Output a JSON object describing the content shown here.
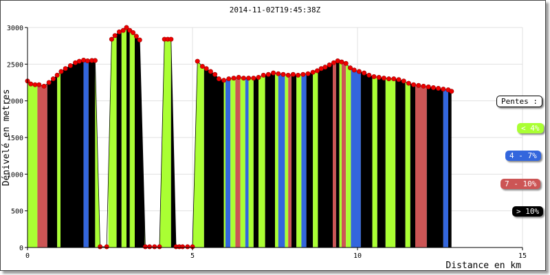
{
  "chart_data": {
    "type": "area",
    "title": "2014-11-02T19:45:38Z",
    "xlabel": "Distance en km",
    "ylabel": "Dénivelé en metres",
    "xlim": [
      0,
      15
    ],
    "ylim": [
      0,
      3000
    ],
    "x_ticks": [
      "0",
      "5",
      "10",
      "15"
    ],
    "y_ticks": [
      "0",
      "500",
      "1000",
      "1500",
      "2000",
      "2500",
      "3000"
    ],
    "grid": true,
    "legend": {
      "title": "Pentes :",
      "placement": "right",
      "items": [
        {
          "label": "< 4%",
          "color": "#aaff33",
          "text_color": "#ffffff"
        },
        {
          "label": "4 - 7%",
          "color": "#3366dd",
          "text_color": "#ffffff"
        },
        {
          "label": "7 - 10%",
          "color": "#cc5555",
          "text_color": "#ffffff"
        },
        {
          "label": "> 10%",
          "color": "#000000",
          "text_color": "#ffffff"
        }
      ]
    },
    "colors": {
      "lt4": "#aaff33",
      "p4_7": "#3366dd",
      "p7_10": "#cc5555",
      "gt10": "#000000",
      "point": "#ee0000"
    },
    "points": [
      [
        0.0,
        2270
      ],
      [
        0.1,
        2230
      ],
      [
        0.23,
        2220
      ],
      [
        0.35,
        2220
      ],
      [
        0.5,
        2200
      ],
      [
        0.65,
        2250
      ],
      [
        0.78,
        2300
      ],
      [
        0.9,
        2350
      ],
      [
        1.02,
        2400
      ],
      [
        1.15,
        2440
      ],
      [
        1.3,
        2480
      ],
      [
        1.45,
        2520
      ],
      [
        1.57,
        2540
      ],
      [
        1.7,
        2555
      ],
      [
        1.82,
        2545
      ],
      [
        1.95,
        2550
      ],
      [
        2.05,
        2550
      ],
      [
        2.2,
        10
      ],
      [
        2.4,
        10
      ],
      [
        2.55,
        2840
      ],
      [
        2.65,
        2890
      ],
      [
        2.78,
        2940
      ],
      [
        2.9,
        2960
      ],
      [
        3.0,
        3000
      ],
      [
        3.1,
        2960
      ],
      [
        3.2,
        2930
      ],
      [
        3.3,
        2880
      ],
      [
        3.4,
        2830
      ],
      [
        3.57,
        10
      ],
      [
        3.7,
        10
      ],
      [
        3.85,
        10
      ],
      [
        4.0,
        10
      ],
      [
        4.15,
        2840
      ],
      [
        4.25,
        2840
      ],
      [
        4.35,
        2840
      ],
      [
        4.5,
        10
      ],
      [
        4.6,
        10
      ],
      [
        4.7,
        10
      ],
      [
        4.85,
        10
      ],
      [
        5.0,
        10
      ],
      [
        5.15,
        2540
      ],
      [
        5.3,
        2470
      ],
      [
        5.42,
        2440
      ],
      [
        5.55,
        2400
      ],
      [
        5.68,
        2360
      ],
      [
        5.8,
        2300
      ],
      [
        5.95,
        2280
      ],
      [
        6.1,
        2300
      ],
      [
        6.25,
        2310
      ],
      [
        6.4,
        2320
      ],
      [
        6.55,
        2310
      ],
      [
        6.7,
        2310
      ],
      [
        6.85,
        2310
      ],
      [
        7.0,
        2320
      ],
      [
        7.15,
        2350
      ],
      [
        7.3,
        2360
      ],
      [
        7.45,
        2380
      ],
      [
        7.6,
        2370
      ],
      [
        7.75,
        2360
      ],
      [
        7.9,
        2350
      ],
      [
        8.05,
        2360
      ],
      [
        8.2,
        2350
      ],
      [
        8.35,
        2360
      ],
      [
        8.5,
        2370
      ],
      [
        8.65,
        2390
      ],
      [
        8.78,
        2410
      ],
      [
        8.9,
        2440
      ],
      [
        9.02,
        2460
      ],
      [
        9.15,
        2490
      ],
      [
        9.28,
        2520
      ],
      [
        9.4,
        2545
      ],
      [
        9.52,
        2530
      ],
      [
        9.65,
        2510
      ],
      [
        9.78,
        2450
      ],
      [
        9.9,
        2420
      ],
      [
        10.05,
        2400
      ],
      [
        10.2,
        2380
      ],
      [
        10.35,
        2350
      ],
      [
        10.5,
        2330
      ],
      [
        10.65,
        2320
      ],
      [
        10.8,
        2310
      ],
      [
        10.95,
        2300
      ],
      [
        11.1,
        2300
      ],
      [
        11.25,
        2290
      ],
      [
        11.4,
        2270
      ],
      [
        11.55,
        2240
      ],
      [
        11.7,
        2220
      ],
      [
        11.85,
        2210
      ],
      [
        12.0,
        2200
      ],
      [
        12.15,
        2190
      ],
      [
        12.3,
        2180
      ],
      [
        12.45,
        2170
      ],
      [
        12.6,
        2160
      ],
      [
        12.75,
        2150
      ],
      [
        12.85,
        2130
      ]
    ],
    "slope_bands": [
      [
        0.0,
        0.3,
        "lt4"
      ],
      [
        0.3,
        0.6,
        "p7_10"
      ],
      [
        0.6,
        0.9,
        "gt10"
      ],
      [
        0.9,
        1.0,
        "lt4"
      ],
      [
        1.0,
        1.7,
        "gt10"
      ],
      [
        1.7,
        1.85,
        "p4_7"
      ],
      [
        1.85,
        2.05,
        "gt10"
      ],
      [
        2.05,
        2.25,
        "lt4"
      ],
      [
        2.45,
        2.7,
        "lt4"
      ],
      [
        2.7,
        2.85,
        "gt10"
      ],
      [
        2.85,
        3.0,
        "lt4"
      ],
      [
        3.0,
        3.1,
        "gt10"
      ],
      [
        3.1,
        3.25,
        "lt4"
      ],
      [
        3.25,
        3.55,
        "gt10"
      ],
      [
        3.55,
        3.62,
        "lt4"
      ],
      [
        3.95,
        4.35,
        "lt4"
      ],
      [
        4.35,
        4.5,
        "gt10"
      ],
      [
        5.0,
        5.35,
        "lt4"
      ],
      [
        5.35,
        5.95,
        "gt10"
      ],
      [
        5.95,
        6.0,
        "lt4"
      ],
      [
        6.0,
        6.15,
        "p4_7"
      ],
      [
        6.15,
        6.3,
        "lt4"
      ],
      [
        6.3,
        6.45,
        "p7_10"
      ],
      [
        6.45,
        6.6,
        "lt4"
      ],
      [
        6.6,
        6.7,
        "p4_7"
      ],
      [
        6.7,
        6.85,
        "lt4"
      ],
      [
        6.85,
        7.0,
        "gt10"
      ],
      [
        7.0,
        7.2,
        "lt4"
      ],
      [
        7.2,
        7.5,
        "gt10"
      ],
      [
        7.5,
        7.6,
        "lt4"
      ],
      [
        7.6,
        7.8,
        "p4_7"
      ],
      [
        7.8,
        7.9,
        "lt4"
      ],
      [
        7.9,
        8.0,
        "p7_10"
      ],
      [
        8.0,
        8.15,
        "gt10"
      ],
      [
        8.15,
        8.3,
        "lt4"
      ],
      [
        8.3,
        8.45,
        "p4_7"
      ],
      [
        8.45,
        8.65,
        "gt10"
      ],
      [
        8.65,
        8.8,
        "lt4"
      ],
      [
        8.8,
        9.25,
        "gt10"
      ],
      [
        9.25,
        9.35,
        "p7_10"
      ],
      [
        9.35,
        9.45,
        "gt10"
      ],
      [
        9.45,
        9.52,
        "lt4"
      ],
      [
        9.52,
        9.65,
        "p7_10"
      ],
      [
        9.65,
        9.8,
        "lt4"
      ],
      [
        9.8,
        10.1,
        "p4_7"
      ],
      [
        10.1,
        10.45,
        "gt10"
      ],
      [
        10.45,
        10.6,
        "lt4"
      ],
      [
        10.6,
        10.85,
        "gt10"
      ],
      [
        10.85,
        11.15,
        "lt4"
      ],
      [
        11.15,
        11.45,
        "gt10"
      ],
      [
        11.45,
        11.6,
        "lt4"
      ],
      [
        11.6,
        11.75,
        "gt10"
      ],
      [
        11.75,
        12.1,
        "p7_10"
      ],
      [
        12.1,
        12.6,
        "gt10"
      ],
      [
        12.6,
        12.75,
        "p4_7"
      ],
      [
        12.75,
        12.85,
        "gt10"
      ]
    ]
  }
}
